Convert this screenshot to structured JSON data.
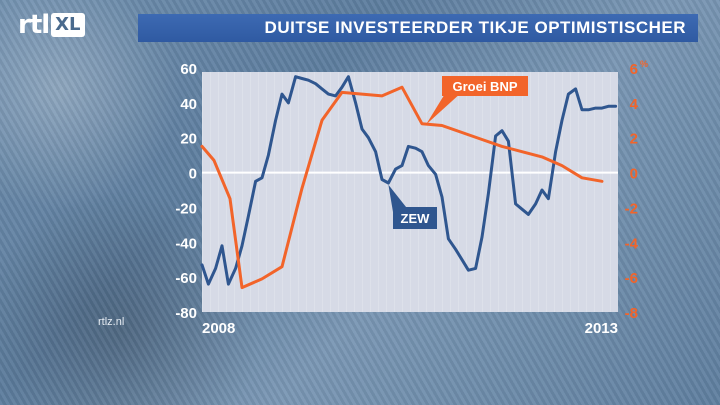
{
  "logo": {
    "main": "rtl",
    "badge": "XL"
  },
  "header": {
    "title": "DUITSE INVESTEERDER TIKJE OPTIMISTISCHER"
  },
  "watermark": "rtlz.nl",
  "colors": {
    "zew": "#2f568f",
    "bnp": "#f2642a",
    "title_bar": "#3463ad",
    "plot_bg": "#d6dae6"
  },
  "chart_data": {
    "type": "line",
    "title": "DUITSE INVESTEERDER TIKJE OPTIMISTISCHER",
    "x_start_label": "2008",
    "x_end_label": "2013",
    "xlim": [
      2008.0,
      2013.2
    ],
    "y_left": {
      "lim": [
        -80,
        60
      ],
      "ticks": [
        "60",
        "40",
        "20",
        "0",
        "-20",
        "-40",
        "-60",
        "-80"
      ]
    },
    "y_right": {
      "lim": [
        -8,
        6
      ],
      "ticks": [
        "6%",
        "4",
        "2",
        "0",
        "-2",
        "-4",
        "-6",
        "-8"
      ]
    },
    "series": [
      {
        "name": "ZEW",
        "axis": "left",
        "color": "#2f568f",
        "x": [
          2008.0,
          2008.08,
          2008.17,
          2008.25,
          2008.33,
          2008.42,
          2008.5,
          2008.58,
          2008.67,
          2008.75,
          2008.83,
          2008.92,
          2009.0,
          2009.08,
          2009.17,
          2009.25,
          2009.33,
          2009.42,
          2009.5,
          2009.58,
          2009.67,
          2009.75,
          2009.83,
          2009.92,
          2010.0,
          2010.08,
          2010.17,
          2010.25,
          2010.33,
          2010.42,
          2010.5,
          2010.58,
          2010.67,
          2010.75,
          2010.83,
          2010.92,
          2011.0,
          2011.08,
          2011.17,
          2011.25,
          2011.33,
          2011.42,
          2011.5,
          2011.58,
          2011.67,
          2011.75,
          2011.83,
          2011.92,
          2012.0,
          2012.08,
          2012.17,
          2012.25,
          2012.33,
          2012.42,
          2012.5,
          2012.58,
          2012.67,
          2012.75,
          2012.83,
          2012.92,
          2013.0,
          2013.08,
          2013.17
        ],
        "values": [
          -53,
          -64,
          -55,
          -42,
          -64,
          -55,
          -42,
          -25,
          -5,
          -3,
          10,
          30,
          45,
          40,
          55,
          54,
          53,
          51,
          48,
          45,
          44,
          49,
          55,
          40,
          25,
          20,
          12,
          -4,
          -6,
          2,
          4,
          15,
          14,
          12,
          4,
          -1,
          -14,
          -38,
          -44,
          -50,
          -56,
          -55,
          -37,
          -12,
          21,
          24,
          18,
          -18,
          -21,
          -24,
          -18,
          -10,
          -15,
          12,
          30,
          45,
          48,
          36,
          36,
          37,
          37,
          38,
          38
        ]
      },
      {
        "name": "Groei BNP",
        "axis": "right",
        "color": "#f2642a",
        "x": [
          2008.0,
          2008.15,
          2008.35,
          2008.5,
          2008.75,
          2009.0,
          2009.25,
          2009.5,
          2009.75,
          2010.0,
          2010.25,
          2010.5,
          2010.75,
          2011.0,
          2011.25,
          2011.5,
          2011.75,
          2012.0,
          2012.25,
          2012.5,
          2012.75,
          2013.0
        ],
        "values": [
          1.5,
          0.7,
          -1.5,
          -6.6,
          -6.1,
          -5.4,
          -0.9,
          3.0,
          4.6,
          4.5,
          4.4,
          4.9,
          2.8,
          2.7,
          2.3,
          1.9,
          1.5,
          1.2,
          0.9,
          0.4,
          -0.3,
          -0.5
        ]
      }
    ],
    "annotations": [
      {
        "text": "Groei BNP",
        "series": "Groei BNP",
        "color": "#f2642a"
      },
      {
        "text": "ZEW",
        "series": "ZEW",
        "color": "#2f568f"
      }
    ]
  }
}
